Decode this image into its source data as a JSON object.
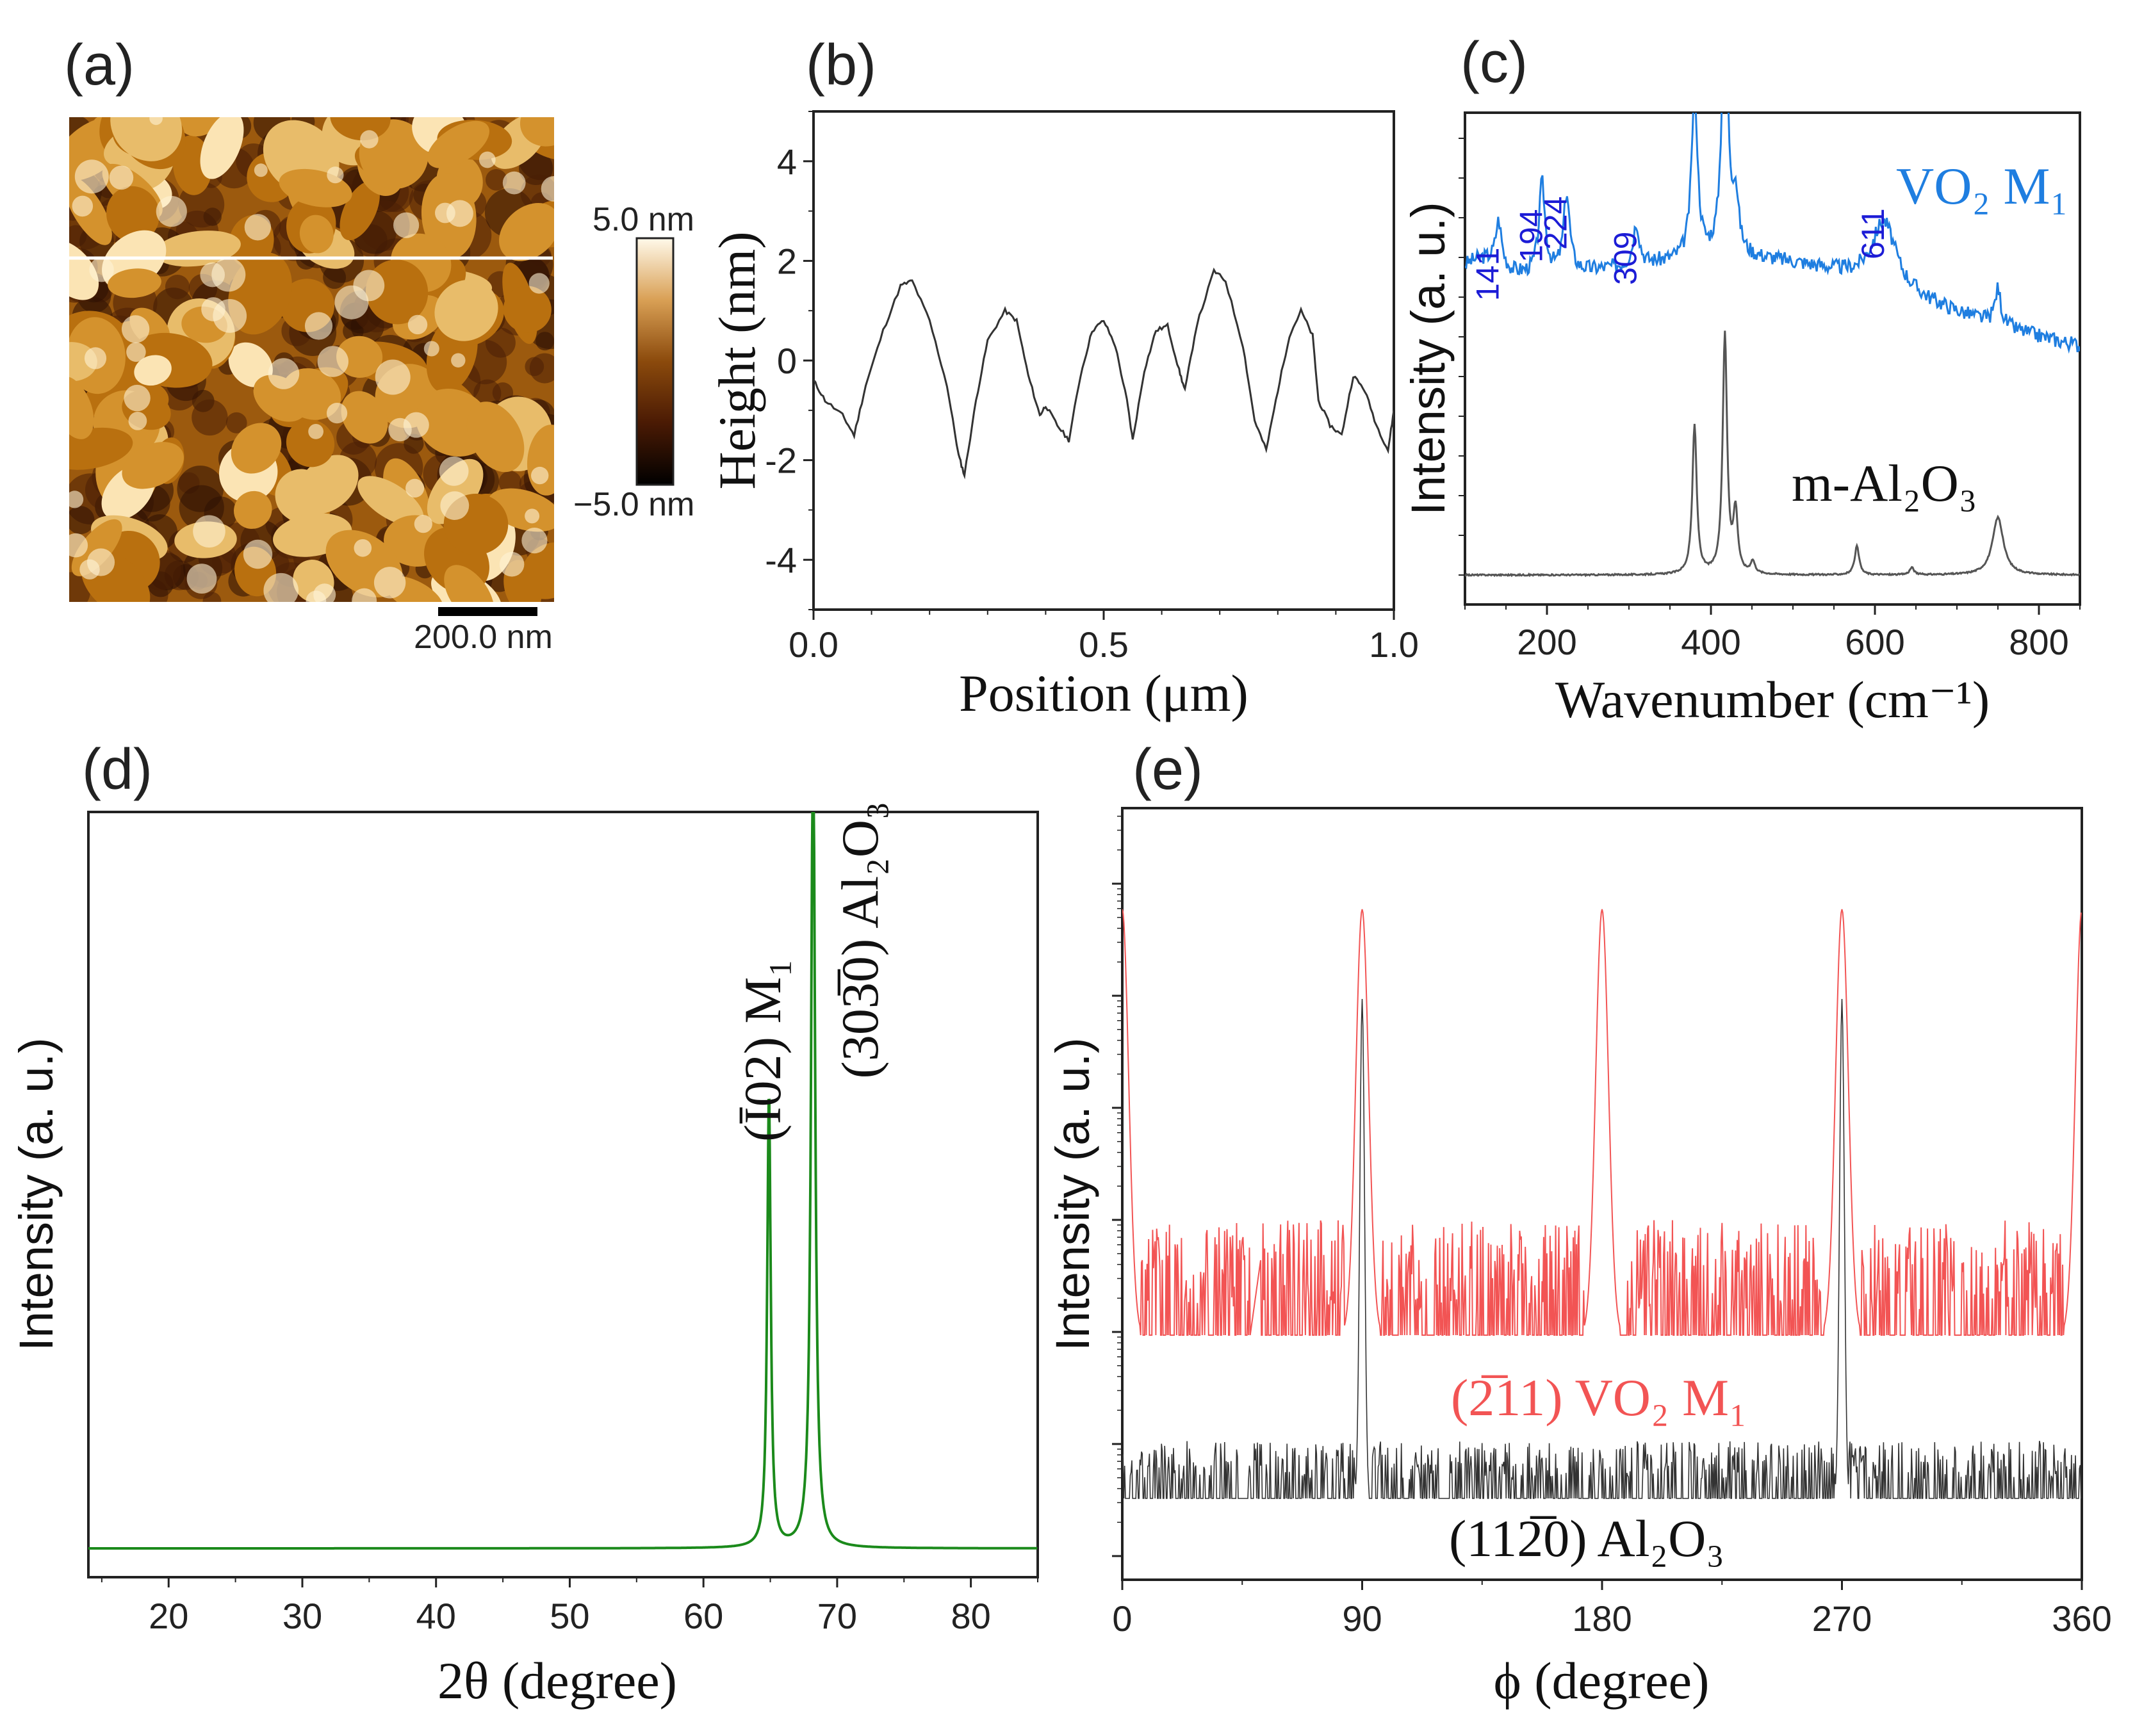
{
  "colors": {
    "afm_dark": "#2a0e02",
    "afm_mid": "#a8620f",
    "afm_light": "#fff6df",
    "vo2_blue": "#1f7ee0",
    "peak_label_blue": "#1c1cd6",
    "sapphire_gray": "#555555",
    "xrd_green": "#1b8a1b",
    "phi_red": "#f25454",
    "phi_black": "#333333"
  },
  "panels": {
    "a": {
      "label": "(a)",
      "colorbar_max": "5.0 nm",
      "colorbar_min": "−5.0 nm",
      "scalebar_label": "200.0 nm"
    },
    "b": {
      "label": "(b)"
    },
    "c": {
      "label": "(c)",
      "peak_labels": [
        "141",
        "194",
        "224",
        "309",
        "611"
      ]
    },
    "d": {
      "label": "(d)"
    },
    "e": {
      "label": "(e)"
    }
  },
  "chart_data": [
    {
      "type": "heatmap",
      "panel": "a",
      "colorscale": "afmhot",
      "zlim": [
        -5.0,
        5.0
      ],
      "zunit": "nm",
      "scalebar": "200.0 nm"
    },
    {
      "type": "line",
      "panel": "b",
      "xlabel": "Position (μm)",
      "ylabel": "Height (nm)",
      "xlim": [
        0.0,
        1.0
      ],
      "ylim": [
        -5,
        5
      ],
      "xticks": [
        "0.0",
        "0.5",
        "1.0"
      ],
      "yticks": [
        "4",
        "2",
        "0",
        "-2",
        "-4"
      ],
      "series": [
        {
          "x": [
            0.0,
            0.02,
            0.05,
            0.07,
            0.09,
            0.12,
            0.15,
            0.17,
            0.2,
            0.23,
            0.25,
            0.26,
            0.28,
            0.3,
            0.33,
            0.35,
            0.37,
            0.39,
            0.4,
            0.42,
            0.44,
            0.46,
            0.48,
            0.5,
            0.52,
            0.54,
            0.55,
            0.57,
            0.59,
            0.61,
            0.63,
            0.64,
            0.66,
            0.69,
            0.71,
            0.74,
            0.76,
            0.78,
            0.8,
            0.82,
            0.84,
            0.86,
            0.87,
            0.89,
            0.91,
            0.93,
            0.95,
            0.97,
            0.99,
            1.0
          ],
          "y": [
            -0.4,
            -0.8,
            -1.1,
            -1.5,
            -0.5,
            0.6,
            1.5,
            1.6,
            0.8,
            -0.5,
            -1.9,
            -2.3,
            -0.8,
            0.4,
            1.0,
            0.8,
            -0.3,
            -1.1,
            -0.9,
            -1.3,
            -1.6,
            -0.3,
            0.6,
            0.8,
            0.3,
            -0.8,
            -1.6,
            -0.2,
            0.6,
            0.7,
            -0.2,
            -0.6,
            0.7,
            1.8,
            1.6,
            0.3,
            -1.2,
            -1.8,
            -0.6,
            0.5,
            1.0,
            0.5,
            -0.8,
            -1.3,
            -1.5,
            -0.3,
            -0.6,
            -1.3,
            -1.8,
            -1.0
          ]
        }
      ]
    },
    {
      "type": "line",
      "panel": "c",
      "xlabel": "Wavenumber (cm⁻¹)",
      "ylabel": "Intensity (a. u.)",
      "xlim": [
        100,
        850
      ],
      "xticks": [
        "200",
        "400",
        "600",
        "800"
      ],
      "annotations": [
        "141",
        "194",
        "224",
        "309",
        "611"
      ],
      "series": [
        {
          "name": "VO₂ M₁",
          "peaks": [
            [
              141,
              0.15
            ],
            [
              194,
              0.3
            ],
            [
              224,
              0.26
            ],
            [
              309,
              0.14
            ],
            [
              380,
              0.55
            ],
            [
              417,
              0.85
            ],
            [
              430,
              0.18
            ],
            [
              611,
              0.22
            ],
            [
              750,
              0.12
            ]
          ]
        },
        {
          "name": "m-Al₂O₃",
          "peaks": [
            [
              380,
              0.62
            ],
            [
              417,
              1.0
            ],
            [
              430,
              0.25
            ],
            [
              451,
              0.05
            ],
            [
              578,
              0.12
            ],
            [
              645,
              0.03
            ],
            [
              750,
              0.24
            ]
          ]
        }
      ]
    },
    {
      "type": "line",
      "panel": "d",
      "xlabel": "2θ (degree)",
      "ylabel": "Intensity (a. u.)",
      "xlim": [
        14,
        85
      ],
      "xticks": [
        "20",
        "30",
        "40",
        "50",
        "60",
        "70",
        "80"
      ],
      "annotations": [
        "(Ī02) M₁",
        "(303̅0) Al₂O₃"
      ],
      "series": [
        {
          "peaks": [
            [
              64.9,
              0.68
            ],
            [
              68.2,
              1.0
            ]
          ]
        }
      ]
    },
    {
      "type": "line",
      "panel": "e",
      "xlabel": "ϕ (degree)",
      "ylabel": "Intensity (a. u.)",
      "yscale": "log",
      "xlim": [
        0,
        360
      ],
      "xticks": [
        "0",
        "90",
        "180",
        "270",
        "360"
      ],
      "series": [
        {
          "name": "(2̅11) VO₂ M₁",
          "peaks_deg": [
            0,
            90,
            180,
            270,
            360
          ]
        },
        {
          "name": "(112̅0) Al₂O₃",
          "peaks_deg": [
            90,
            270
          ]
        }
      ]
    }
  ]
}
